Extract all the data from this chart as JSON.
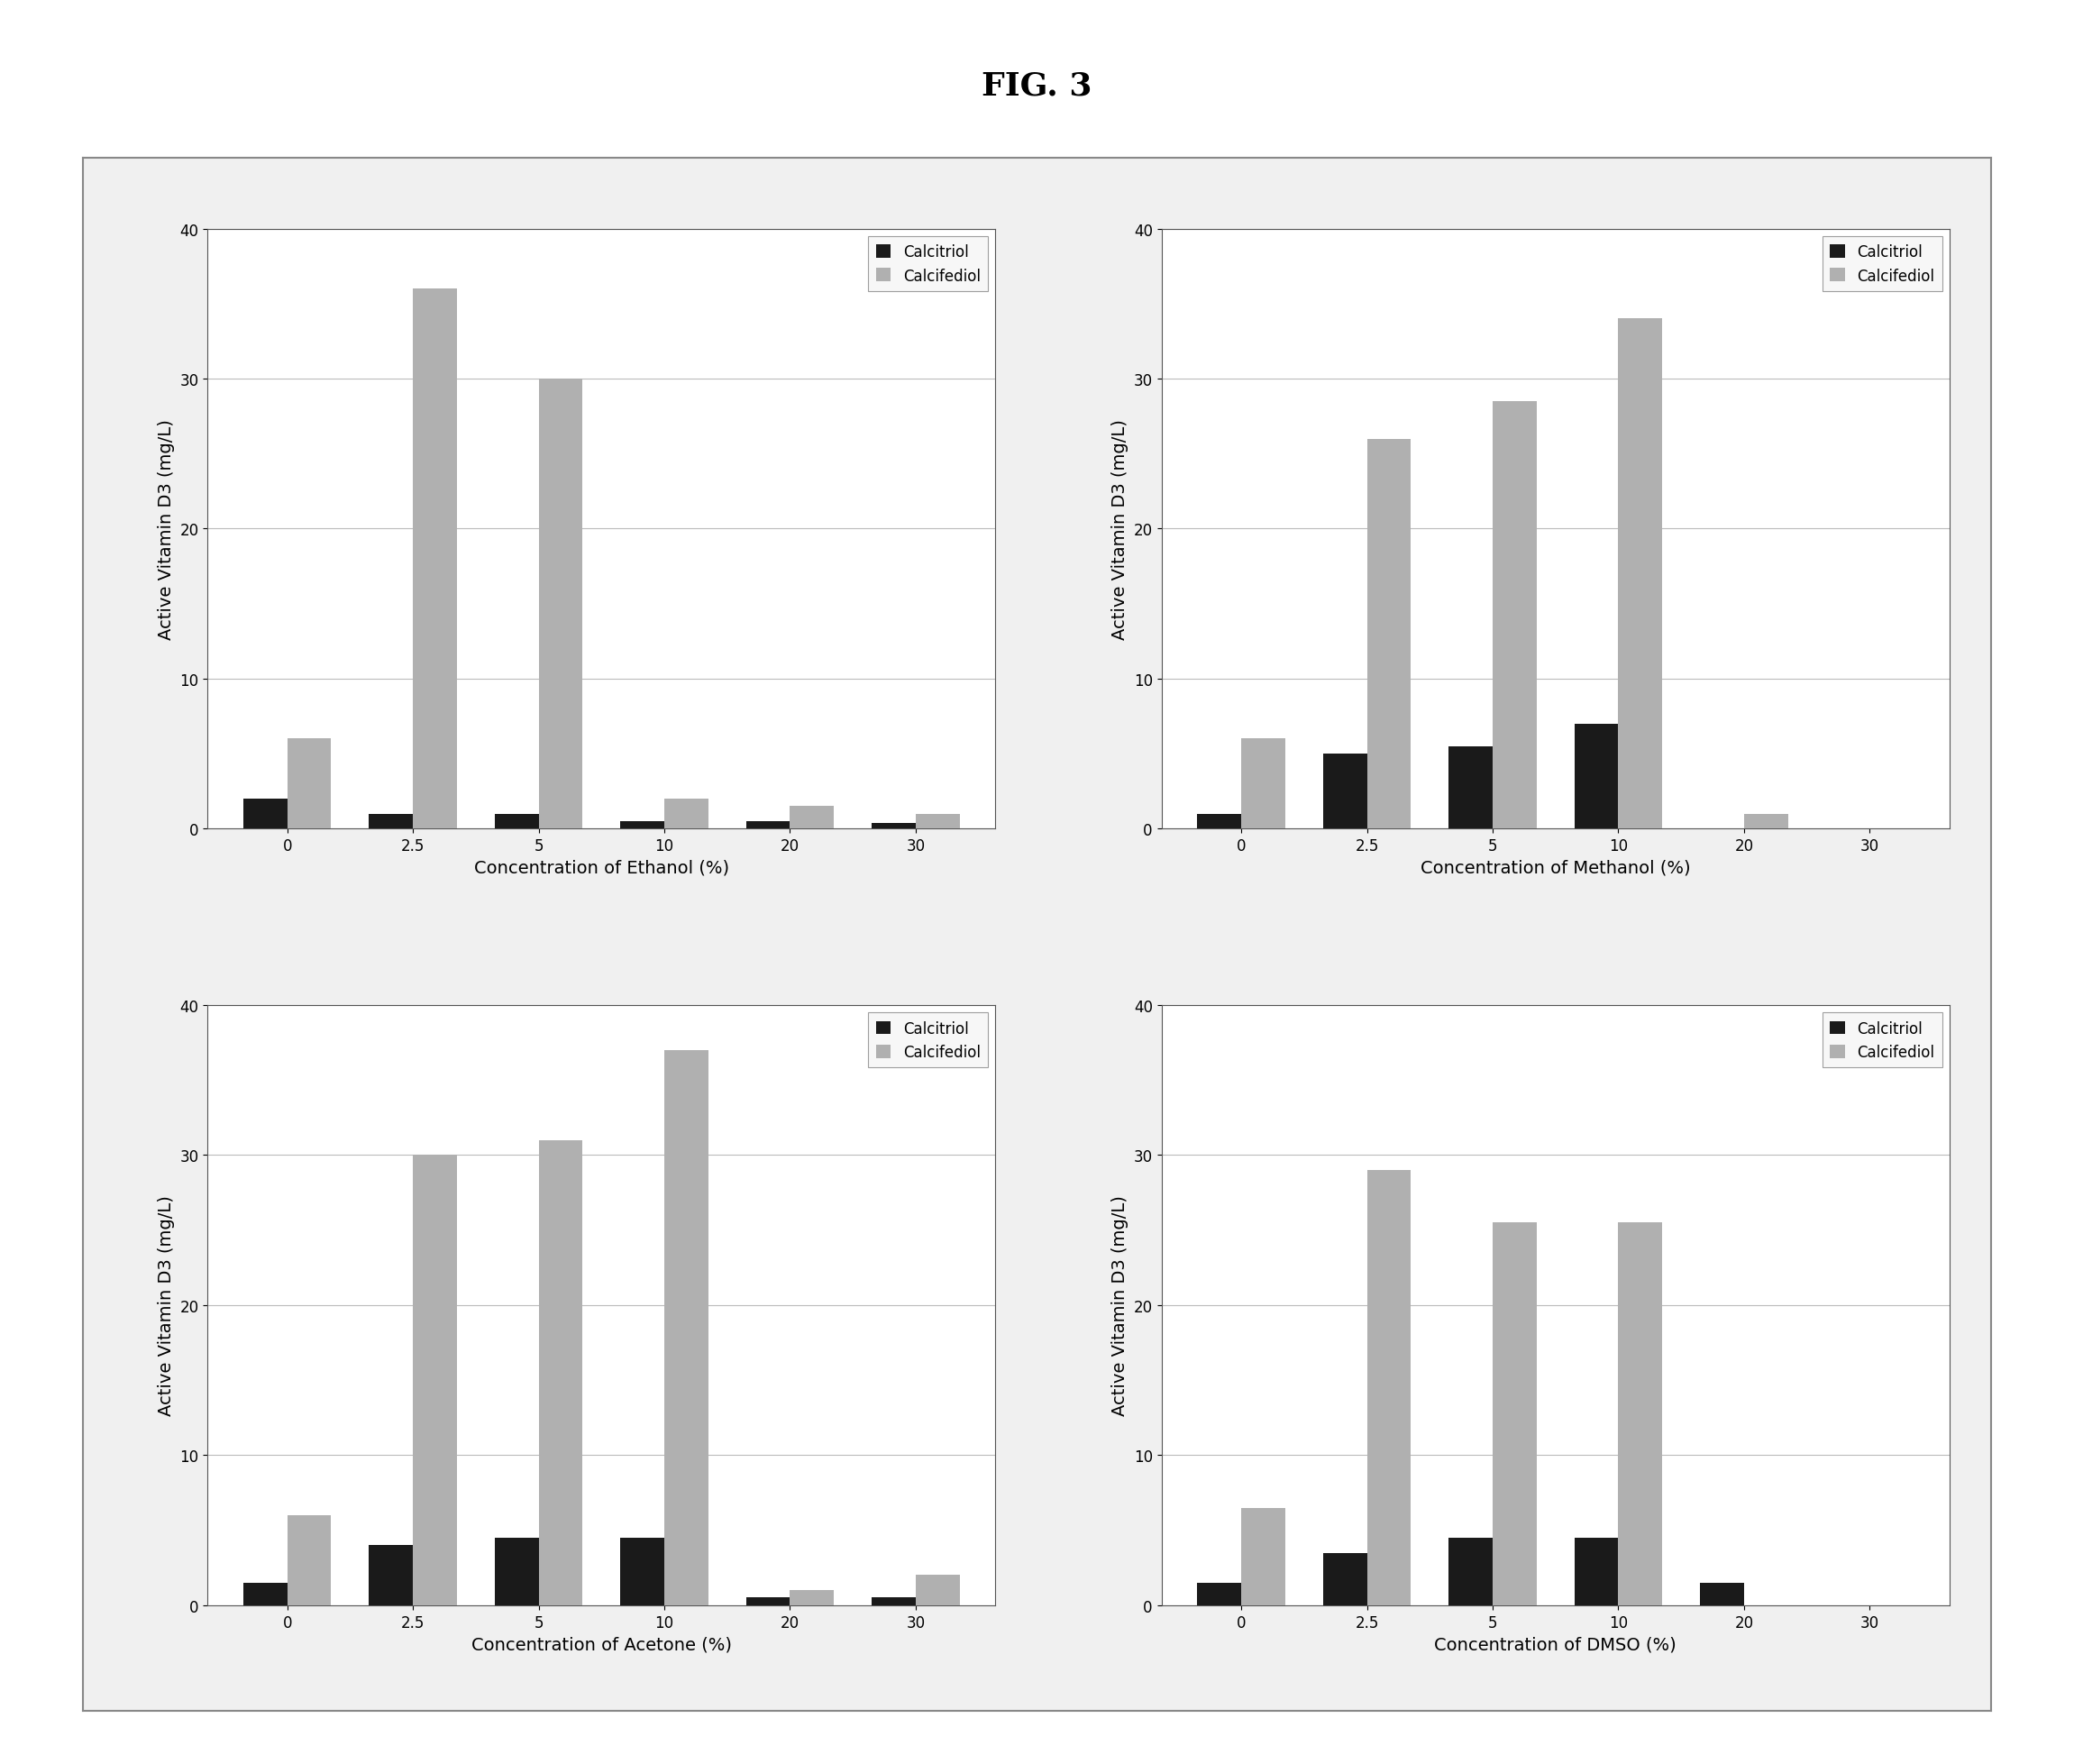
{
  "title": "FIG. 3",
  "subplots": [
    {
      "xlabel": "Concentration of Ethanol (%)",
      "ylabel": "Active Vitamin D3 (mg/L)",
      "categories": [
        "0",
        "2.5",
        "5",
        "10",
        "20",
        "30"
      ],
      "calcitriol": [
        2.0,
        1.0,
        1.0,
        0.5,
        0.5,
        0.4
      ],
      "calcifediol": [
        6.0,
        36.0,
        30.0,
        2.0,
        1.5,
        1.0
      ]
    },
    {
      "xlabel": "Concentration of Methanol (%)",
      "ylabel": "Active Vitamin D3 (mg/L)",
      "categories": [
        "0",
        "2.5",
        "5",
        "10",
        "20",
        "30"
      ],
      "calcitriol": [
        1.0,
        5.0,
        5.5,
        7.0,
        0.0,
        0.0
      ],
      "calcifediol": [
        6.0,
        26.0,
        28.5,
        34.0,
        1.0,
        0.0
      ]
    },
    {
      "xlabel": "Concentration of Acetone (%)",
      "ylabel": "Active Vitamin D3 (mg/L)",
      "categories": [
        "0",
        "2.5",
        "5",
        "10",
        "20",
        "30"
      ],
      "calcitriol": [
        1.5,
        4.0,
        4.5,
        4.5,
        0.5,
        0.5
      ],
      "calcifediol": [
        6.0,
        30.0,
        31.0,
        37.0,
        1.0,
        2.0
      ]
    },
    {
      "xlabel": "Concentration of DMSO (%)",
      "ylabel": "Active Vitamin D3 (mg/L)",
      "categories": [
        "0",
        "2.5",
        "5",
        "10",
        "20",
        "30"
      ],
      "calcitriol": [
        1.5,
        3.5,
        4.5,
        4.5,
        1.5,
        0.0
      ],
      "calcifediol": [
        6.5,
        29.0,
        25.5,
        25.5,
        0.0,
        0.0
      ]
    }
  ],
  "calcitriol_color": "#1a1a1a",
  "calcifediol_color": "#b0b0b0",
  "ylim": [
    0,
    40
  ],
  "yticks": [
    0,
    10,
    20,
    30,
    40
  ],
  "bar_width": 0.35,
  "legend_labels": [
    "Calcitriol",
    "Calcifediol"
  ],
  "background_color": "#ffffff",
  "figure_bg": "#ffffff",
  "plot_bg": "#ffffff",
  "grid_color": "#bbbbbb",
  "border_color": "#888888",
  "title_fontsize": 26,
  "axis_fontsize": 14,
  "tick_fontsize": 12,
  "legend_fontsize": 12
}
